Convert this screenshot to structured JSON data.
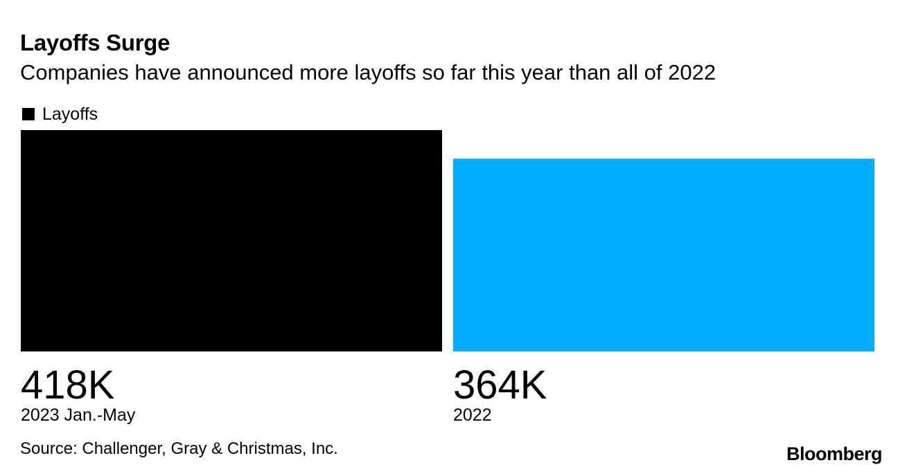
{
  "chart_data": {
    "type": "bar",
    "title": "Layoffs Surge",
    "subtitle": "Companies have announced more layoffs so far this year than all of 2022",
    "categories": [
      "2023 Jan.-May",
      "2022"
    ],
    "series": [
      {
        "name": "Layoffs",
        "values": [
          418000,
          364000
        ],
        "value_labels": [
          "418K",
          "364K"
        ],
        "bar_colors": [
          "#000000",
          "#00adff"
        ]
      }
    ],
    "legend": {
      "label": "Layoffs",
      "color": "#000000",
      "placement": "top-left"
    },
    "ylim": [
      0,
      418000
    ],
    "grid": false,
    "xlabel": "",
    "ylabel": "",
    "source": "Source: Challenger, Gray & Christmas, Inc."
  },
  "branding": {
    "logo": "Bloomberg"
  }
}
